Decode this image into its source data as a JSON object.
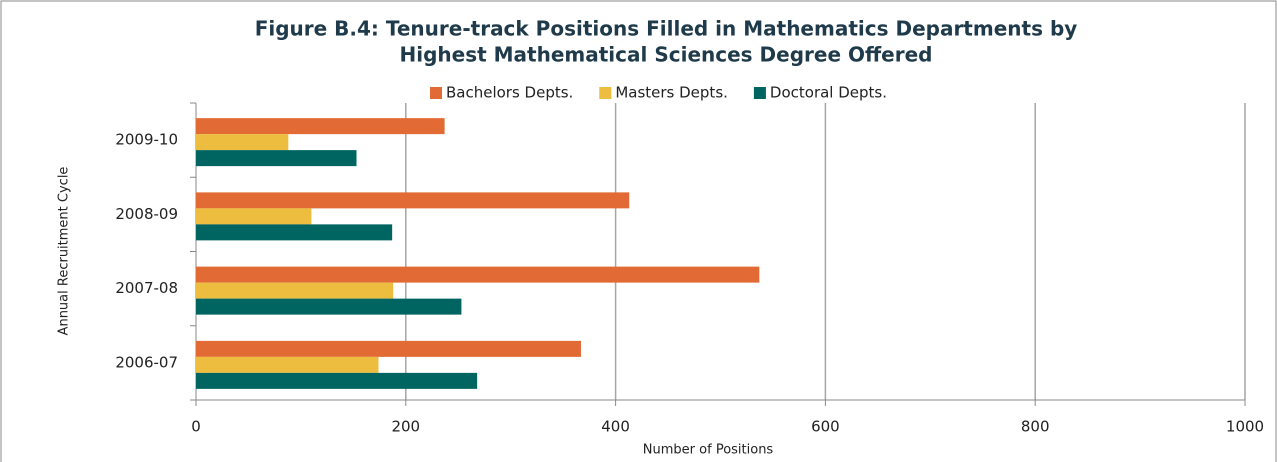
{
  "chart_data": {
    "type": "barh",
    "title": [
      "Figure B.4: Tenure-track Positions Filled in Mathematics Departments by",
      "Highest Mathematical Sciences Degree Offered"
    ],
    "x_label": "Number of Positions",
    "y_label": "Annual Recruitment Cycle",
    "categories": [
      "2009-10",
      "2008-09",
      "2007-08",
      "2006-07"
    ],
    "series": [
      {
        "name": "Bachelors Depts.",
        "color": "#e26b35",
        "values": [
          237,
          413,
          537,
          367
        ]
      },
      {
        "name": "Masters Depts.",
        "color": "#ecbd3f",
        "values": [
          88,
          110,
          188,
          174
        ]
      },
      {
        "name": "Doctoral Depts.",
        "color": "#006461",
        "values": [
          153,
          187,
          253,
          268
        ]
      }
    ],
    "xlim": [
      0,
      1000
    ],
    "xticks": [
      0,
      200,
      400,
      600,
      800,
      1000
    ],
    "grid": true,
    "legend": "top"
  }
}
